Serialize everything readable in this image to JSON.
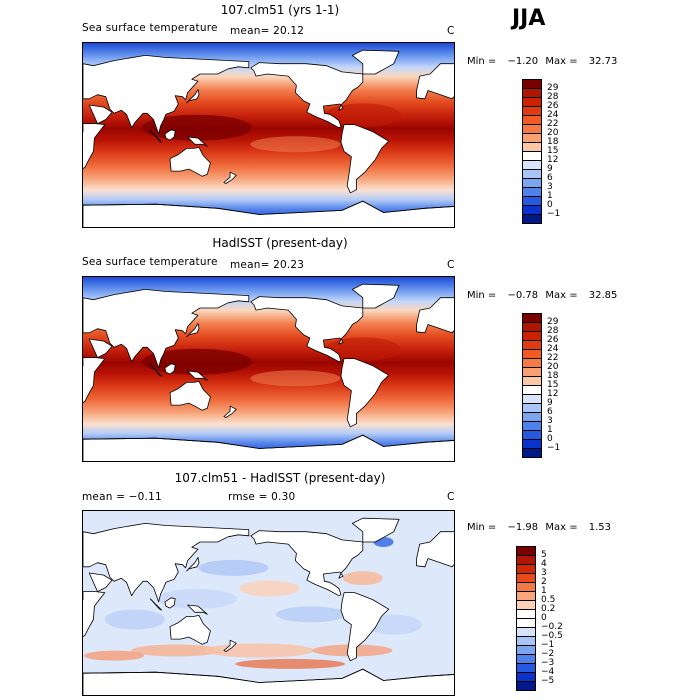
{
  "season": "JJA",
  "panels": [
    {
      "title": "107.clm51 (yrs 1-1)",
      "sub_left": "Sea surface temperature",
      "sub_mid": "mean=  20.12",
      "unit": "C",
      "min_label": "Min =",
      "min_value": "−1.20",
      "max_label": "Max =",
      "max_value": "32.73",
      "scale": "abs"
    },
    {
      "title": "HadISST (present-day)",
      "sub_left": "Sea surface temperature",
      "sub_mid": "mean=  20.23",
      "unit": "C",
      "min_label": "Min =",
      "min_value": "−0.78",
      "max_label": "Max =",
      "max_value": "32.85",
      "scale": "abs"
    },
    {
      "title": "107.clm51 - HadISST (present-day)",
      "sub_left": "mean =  −0.11",
      "sub_mid": "rmse =   0.30",
      "unit": "C",
      "min_label": "Min =",
      "min_value": "−1.98",
      "max_label": "Max =",
      "max_value": "1.53",
      "scale": "diff"
    }
  ],
  "colorbars": {
    "abs": {
      "labels": [
        "29",
        "28",
        "26",
        "24",
        "22",
        "20",
        "18",
        "15",
        "12",
        "9",
        "6",
        "3",
        "1",
        "0",
        "−1"
      ],
      "colors": [
        "#7a0000",
        "#b01500",
        "#cc2200",
        "#e03a10",
        "#ef5a25",
        "#f57a45",
        "#f9a070",
        "#fcc7a5",
        "#ffffff",
        "#d5e3fb",
        "#a9c5f7",
        "#7ca5f0",
        "#4d82ea",
        "#2459e0",
        "#0a33cc",
        "#001a8a"
      ]
    },
    "diff": {
      "labels": [
        "5",
        "4",
        "3",
        "2",
        "1",
        "0.5",
        "0.2",
        "0",
        "−0.2",
        "−0.5",
        "−1",
        "−2",
        "−3",
        "−4",
        "−5"
      ],
      "colors": [
        "#7a0000",
        "#b01500",
        "#d02800",
        "#e84a1a",
        "#f37a48",
        "#f9a67a",
        "#fcd0b5",
        "#ffffff",
        "#ffffff",
        "#d5e3fb",
        "#a9c5f7",
        "#7ca5f0",
        "#4d82ea",
        "#2459e0",
        "#0a33cc",
        "#001a8a"
      ]
    }
  }
}
